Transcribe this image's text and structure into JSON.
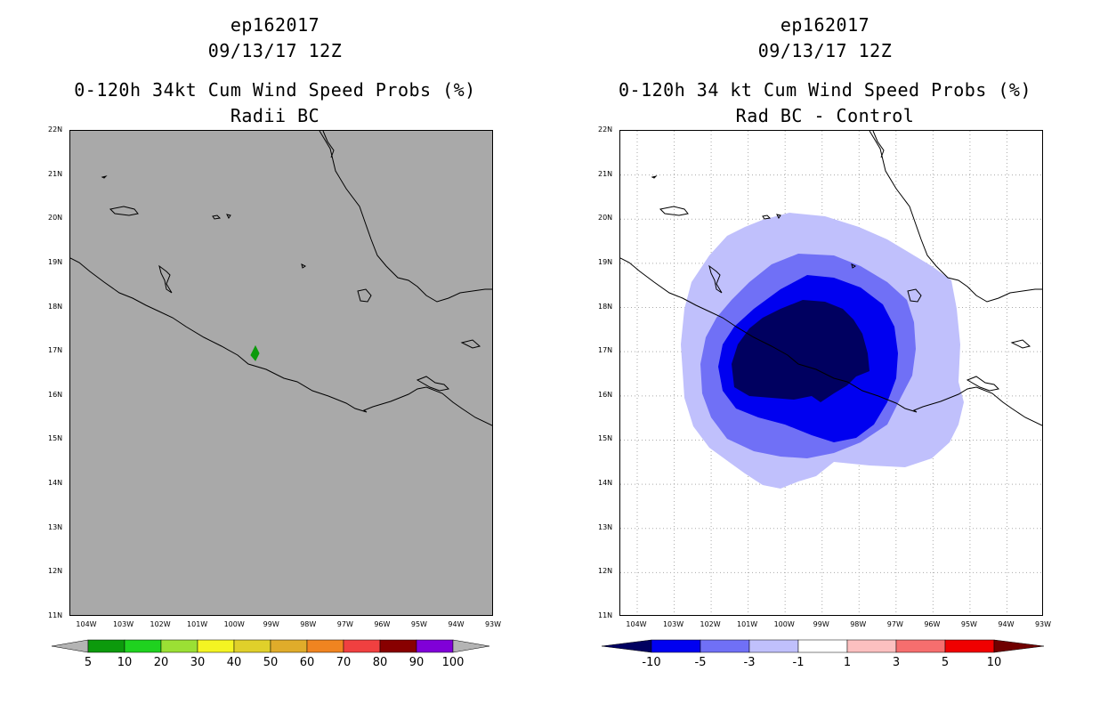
{
  "left_panel": {
    "storm_id": "ep162017",
    "datetime": "09/13/17 12Z",
    "title": "0-120h 34kt Cum Wind Speed Probs (%)",
    "subtitle": "Radii BC",
    "background_color": "#a9a9a9",
    "colorbar": {
      "labels": [
        "5",
        "10",
        "20",
        "30",
        "40",
        "50",
        "60",
        "70",
        "80",
        "90",
        "100"
      ],
      "colors": [
        "#0c9a0c",
        "#1fd21f",
        "#9be034",
        "#f4f422",
        "#e0d02a",
        "#e0ac2a",
        "#f08420",
        "#f04040",
        "#880000",
        "#8000d8"
      ],
      "end_color": "#b4b4b4"
    },
    "feature_label": "5-10% probability spot near 17N 99.5W"
  },
  "right_panel": {
    "storm_id": "ep162017",
    "datetime": "09/13/17 12Z",
    "title": "0-120h 34 kt Cum Wind Speed Probs (%)",
    "subtitle": "Rad BC - Control",
    "colorbar": {
      "labels": [
        "-10",
        "-5",
        "-3",
        "-1",
        "1",
        "3",
        "5",
        "10"
      ],
      "colors": [
        "#0000f0",
        "#7070f6",
        "#c0c0fc",
        "#ffffff",
        "#fcc0c0",
        "#f66e6e",
        "#f00000"
      ],
      "low_end_color": "#000060",
      "high_end_color": "#700000"
    }
  },
  "map": {
    "lat_labels": [
      "22N",
      "21N",
      "20N",
      "19N",
      "18N",
      "17N",
      "16N",
      "15N",
      "14N",
      "13N",
      "12N",
      "11N"
    ],
    "lon_labels": [
      "104W",
      "103W",
      "102W",
      "101W",
      "100W",
      "99W",
      "98W",
      "97W",
      "96W",
      "95W",
      "94W",
      "93W"
    ]
  }
}
